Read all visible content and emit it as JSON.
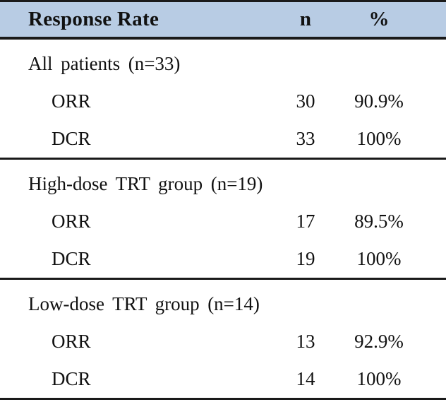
{
  "colors": {
    "header_bg": "#b8cce4",
    "rule": "#1a1a1a"
  },
  "table": {
    "header": {
      "label": "Response Rate",
      "n": "n",
      "pct": "%"
    },
    "sections": [
      {
        "label": "All patients (n=33)",
        "rows": [
          {
            "label": "ORR",
            "n": "30",
            "pct": "90.9%"
          },
          {
            "label": "DCR",
            "n": "33",
            "pct": "100%"
          }
        ]
      },
      {
        "label": "High-dose TRT group (n=19)",
        "rows": [
          {
            "label": "ORR",
            "n": "17",
            "pct": "89.5%"
          },
          {
            "label": "DCR",
            "n": "19",
            "pct": "100%"
          }
        ]
      },
      {
        "label": "Low-dose TRT group (n=14)",
        "rows": [
          {
            "label": "ORR",
            "n": "13",
            "pct": "92.9%"
          },
          {
            "label": "DCR",
            "n": "14",
            "pct": "100%"
          }
        ]
      }
    ]
  }
}
